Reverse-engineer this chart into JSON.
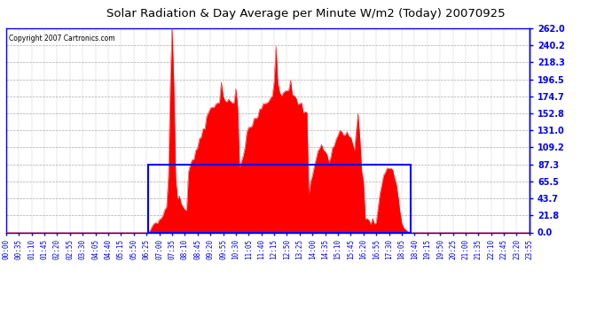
{
  "title": "Solar Radiation & Day Average per Minute W/m2 (Today) 20070925",
  "copyright": "Copyright 2007 Cartronics.com",
  "ymax": 262.0,
  "yticks": [
    0.0,
    21.8,
    43.7,
    65.5,
    87.3,
    109.2,
    131.0,
    152.8,
    174.7,
    196.5,
    218.3,
    240.2,
    262.0
  ],
  "bg_color": "#ffffff",
  "fill_color": "#ff0000",
  "grid_color": "#aaaaaa",
  "box_color": "#0000ff",
  "title_color": "#000000",
  "day_avg": 87.3,
  "tick_interval": 35,
  "num_points": 288,
  "sunrise_pt": 78,
  "sunset_pt": 222
}
